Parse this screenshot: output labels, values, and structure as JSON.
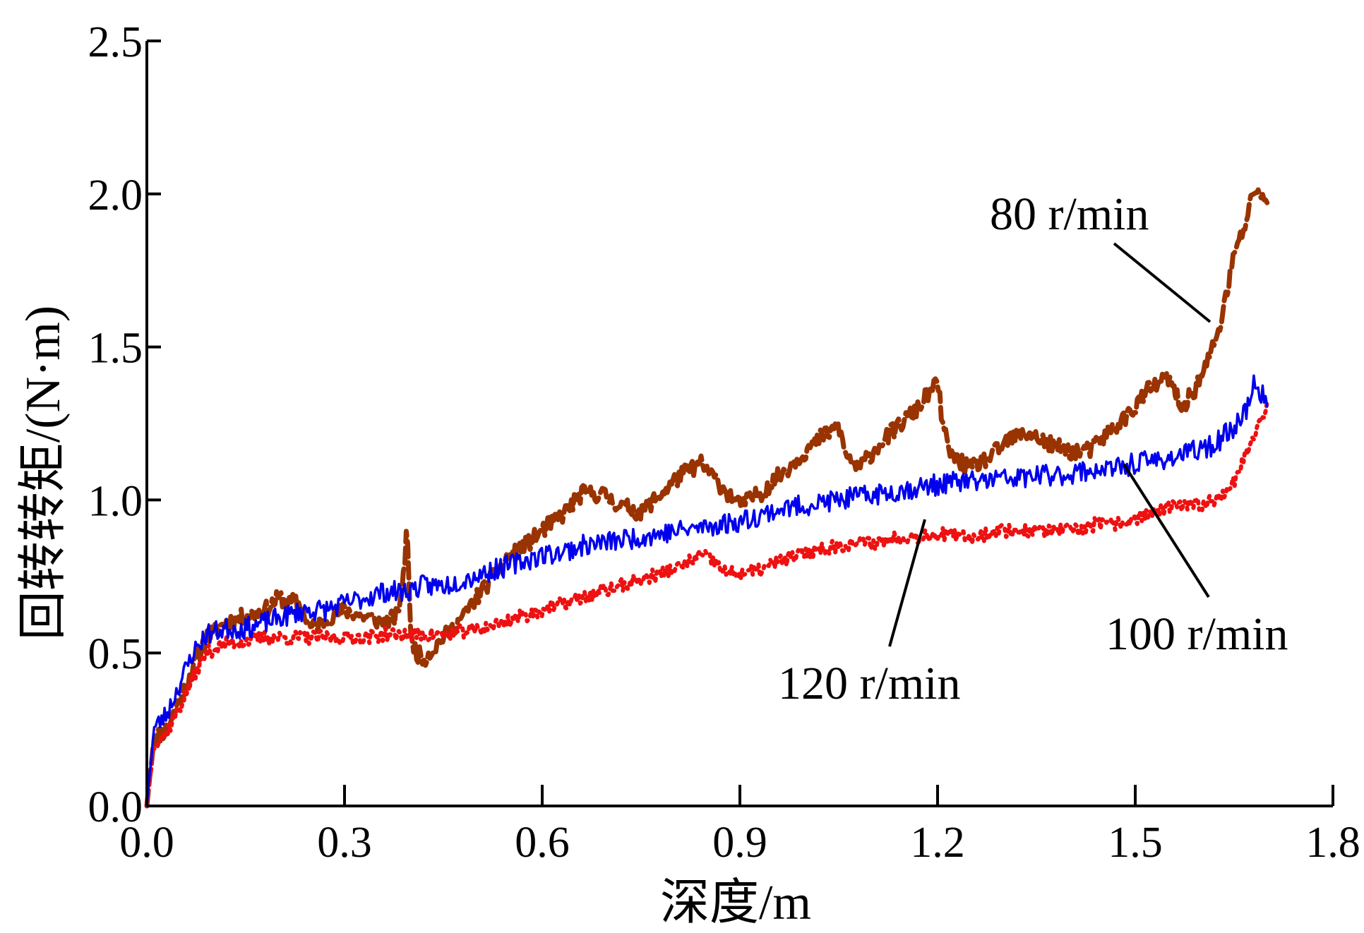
{
  "chart_data": {
    "type": "line",
    "title": "",
    "xlabel": "深度/m",
    "ylabel": "回转转矩/(N·m)",
    "xlim": [
      0.0,
      1.8
    ],
    "ylim": [
      0.0,
      2.5
    ],
    "x_ticks": [
      "0.0",
      "0.3",
      "0.6",
      "0.9",
      "1.2",
      "1.5",
      "1.8"
    ],
    "y_ticks": [
      "0.0",
      "0.5",
      "1.0",
      "1.5",
      "2.0",
      "2.5"
    ],
    "grid": false,
    "legend": "none",
    "series": [
      {
        "name": "80 r/min",
        "color": "#993300",
        "style": "dashed",
        "x": [
          0.0,
          0.01,
          0.03,
          0.05,
          0.07,
          0.09,
          0.12,
          0.15,
          0.18,
          0.2,
          0.23,
          0.25,
          0.28,
          0.3,
          0.33,
          0.36,
          0.38,
          0.39,
          0.395,
          0.4,
          0.41,
          0.42,
          0.45,
          0.48,
          0.5,
          0.53,
          0.55,
          0.58,
          0.6,
          0.63,
          0.66,
          0.69,
          0.72,
          0.75,
          0.78,
          0.81,
          0.84,
          0.87,
          0.9,
          0.93,
          0.96,
          0.99,
          1.02,
          1.05,
          1.06,
          1.08,
          1.11,
          1.14,
          1.17,
          1.19,
          1.2,
          1.21,
          1.22,
          1.25,
          1.28,
          1.31,
          1.34,
          1.37,
          1.4,
          1.43,
          1.46,
          1.49,
          1.52,
          1.55,
          1.57,
          1.59,
          1.61,
          1.63,
          1.65,
          1.67,
          1.68,
          1.7
        ],
        "y": [
          0.0,
          0.22,
          0.25,
          0.35,
          0.45,
          0.55,
          0.6,
          0.62,
          0.64,
          0.68,
          0.66,
          0.58,
          0.62,
          0.64,
          0.62,
          0.6,
          0.62,
          0.75,
          0.95,
          0.55,
          0.5,
          0.48,
          0.55,
          0.62,
          0.68,
          0.76,
          0.82,
          0.86,
          0.9,
          0.95,
          1.02,
          1.02,
          0.98,
          0.96,
          1.02,
          1.08,
          1.12,
          1.05,
          0.98,
          1.02,
          1.08,
          1.14,
          1.2,
          1.24,
          1.15,
          1.1,
          1.18,
          1.24,
          1.3,
          1.36,
          1.38,
          1.22,
          1.15,
          1.1,
          1.14,
          1.2,
          1.22,
          1.18,
          1.16,
          1.16,
          1.22,
          1.28,
          1.36,
          1.4,
          1.3,
          1.36,
          1.45,
          1.58,
          1.8,
          1.92,
          2.02,
          1.98
        ]
      },
      {
        "name": "100 r/min",
        "color": "#0000ee",
        "style": "solid",
        "x": [
          0.0,
          0.01,
          0.03,
          0.05,
          0.07,
          0.09,
          0.12,
          0.15,
          0.18,
          0.21,
          0.24,
          0.27,
          0.3,
          0.33,
          0.36,
          0.39,
          0.42,
          0.45,
          0.48,
          0.51,
          0.54,
          0.57,
          0.6,
          0.63,
          0.66,
          0.69,
          0.72,
          0.75,
          0.78,
          0.81,
          0.84,
          0.87,
          0.9,
          0.93,
          0.96,
          0.99,
          1.02,
          1.05,
          1.08,
          1.11,
          1.14,
          1.17,
          1.2,
          1.23,
          1.26,
          1.29,
          1.32,
          1.35,
          1.38,
          1.41,
          1.44,
          1.47,
          1.5,
          1.53,
          1.56,
          1.59,
          1.62,
          1.65,
          1.67,
          1.68,
          1.7
        ],
        "y": [
          0.0,
          0.25,
          0.3,
          0.4,
          0.5,
          0.56,
          0.58,
          0.58,
          0.6,
          0.62,
          0.64,
          0.64,
          0.66,
          0.68,
          0.7,
          0.7,
          0.72,
          0.72,
          0.74,
          0.76,
          0.78,
          0.8,
          0.82,
          0.83,
          0.85,
          0.86,
          0.87,
          0.88,
          0.89,
          0.9,
          0.91,
          0.92,
          0.93,
          0.95,
          0.97,
          0.98,
          0.99,
          1.0,
          1.01,
          1.02,
          1.03,
          1.04,
          1.05,
          1.06,
          1.06,
          1.07,
          1.07,
          1.08,
          1.08,
          1.09,
          1.1,
          1.1,
          1.12,
          1.13,
          1.14,
          1.16,
          1.18,
          1.24,
          1.3,
          1.38,
          1.32
        ]
      },
      {
        "name": "120 r/min",
        "color": "#ee1111",
        "style": "dotted",
        "x": [
          0.0,
          0.01,
          0.03,
          0.05,
          0.07,
          0.09,
          0.12,
          0.15,
          0.18,
          0.21,
          0.24,
          0.27,
          0.3,
          0.33,
          0.36,
          0.39,
          0.42,
          0.45,
          0.48,
          0.51,
          0.54,
          0.57,
          0.6,
          0.63,
          0.66,
          0.69,
          0.72,
          0.75,
          0.78,
          0.81,
          0.84,
          0.86,
          0.88,
          0.9,
          0.93,
          0.96,
          0.99,
          1.02,
          1.05,
          1.08,
          1.11,
          1.14,
          1.17,
          1.2,
          1.23,
          1.26,
          1.29,
          1.32,
          1.35,
          1.38,
          1.41,
          1.44,
          1.47,
          1.5,
          1.53,
          1.56,
          1.59,
          1.62,
          1.65,
          1.67,
          1.69,
          1.7
        ],
        "y": [
          0.0,
          0.2,
          0.24,
          0.32,
          0.42,
          0.5,
          0.53,
          0.54,
          0.55,
          0.55,
          0.55,
          0.55,
          0.55,
          0.55,
          0.56,
          0.56,
          0.56,
          0.56,
          0.57,
          0.58,
          0.6,
          0.62,
          0.64,
          0.66,
          0.68,
          0.7,
          0.72,
          0.74,
          0.76,
          0.78,
          0.82,
          0.8,
          0.76,
          0.76,
          0.77,
          0.8,
          0.82,
          0.84,
          0.85,
          0.86,
          0.86,
          0.88,
          0.88,
          0.89,
          0.88,
          0.88,
          0.9,
          0.9,
          0.9,
          0.9,
          0.9,
          0.92,
          0.92,
          0.94,
          0.96,
          0.98,
          0.98,
          1.0,
          1.06,
          1.16,
          1.26,
          1.3
        ]
      }
    ],
    "annotations": [
      {
        "text": "80 r/min",
        "series": "80 r/min"
      },
      {
        "text": "100 r/min",
        "series": "100 r/min"
      },
      {
        "text": "120 r/min",
        "series": "120 r/min"
      }
    ]
  }
}
